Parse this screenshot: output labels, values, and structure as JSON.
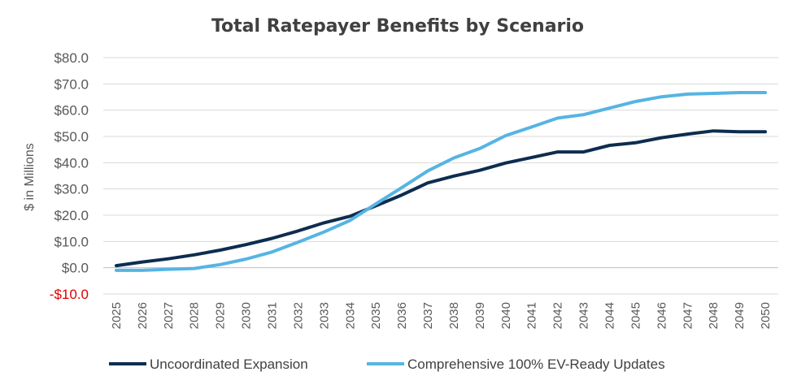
{
  "chart_data": {
    "type": "line",
    "title": "Total Ratepayer Benefits by Scenario",
    "ylabel": "$ in Millions",
    "xlabel": "",
    "ylim": [
      -10,
      80
    ],
    "yticks": [
      80,
      70,
      60,
      50,
      40,
      30,
      20,
      10,
      0,
      -10
    ],
    "ytick_labels": [
      "$80.0",
      "$70.0",
      "$60.0",
      "$50.0",
      "$40.0",
      "$30.0",
      "$20.0",
      "$10.0",
      "$0.0",
      "-$10.0"
    ],
    "negative_tick_color": "#e00000",
    "grid": true,
    "legend": "bottom",
    "x": [
      "2025",
      "2026",
      "2027",
      "2028",
      "2029",
      "2030",
      "2031",
      "2032",
      "2033",
      "2034",
      "2035",
      "2036",
      "2037",
      "2038",
      "2039",
      "2040",
      "2041",
      "2042",
      "2043",
      "2044",
      "2045",
      "2046",
      "2047",
      "2048",
      "2049",
      "2050"
    ],
    "series": [
      {
        "name": "Uncoordinated Expansion",
        "color": "#0d2d4f",
        "values": [
          0.8,
          2.2,
          3.4,
          4.9,
          6.7,
          8.8,
          11.2,
          14.0,
          17.1,
          19.6,
          23.6,
          27.7,
          32.3,
          34.9,
          37.1,
          39.9,
          42.0,
          44.1,
          44.1,
          46.6,
          47.6,
          49.5,
          50.9,
          52.1,
          51.8,
          51.8
        ]
      },
      {
        "name": "Comprehensive 100% EV-Ready Updates",
        "color": "#56b4e3",
        "values": [
          -1.0,
          -1.0,
          -0.6,
          -0.3,
          1.2,
          3.3,
          6.0,
          9.7,
          13.6,
          18.0,
          24.3,
          30.5,
          36.9,
          41.8,
          45.4,
          50.3,
          53.6,
          57.0,
          58.3,
          60.8,
          63.3,
          65.1,
          66.1,
          66.4,
          66.7,
          66.7
        ]
      }
    ]
  }
}
